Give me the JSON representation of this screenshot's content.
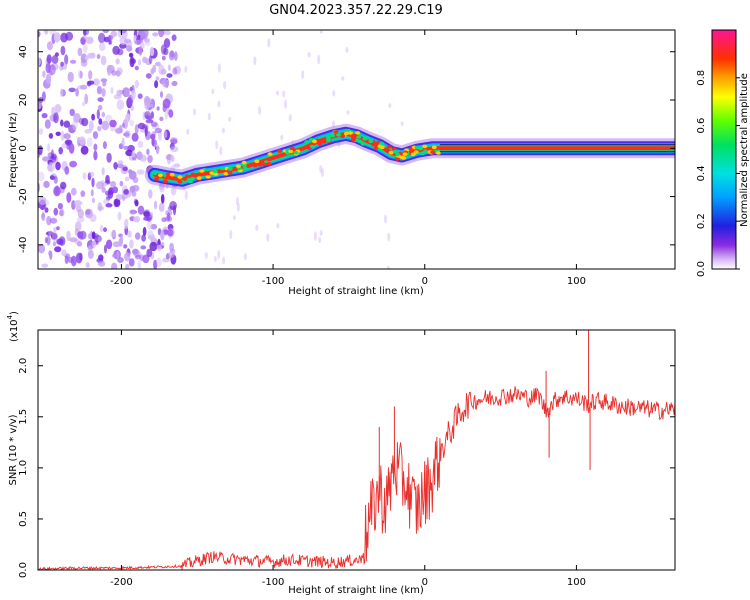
{
  "title": "GN04.2023.357.22.29.C19",
  "colors": {
    "snr_line": "#e8302c",
    "axis": "#000000"
  },
  "chart_data": [
    {
      "type": "heatmap",
      "xlabel": "Height of straight line (km)",
      "ylabel": "Frequency (Hz)",
      "xlim": [
        -255,
        165
      ],
      "ylim": [
        -50,
        49
      ],
      "x_ticks": [
        {
          "v": -200,
          "t": "-200"
        },
        {
          "v": -100,
          "t": "-100"
        },
        {
          "v": 0,
          "t": "0"
        },
        {
          "v": 100,
          "t": "100"
        }
      ],
      "y_ticks": [
        {
          "v": 40,
          "t": "40"
        },
        {
          "v": 20,
          "t": "20"
        },
        {
          "v": 0,
          "t": "0"
        },
        {
          "v": -20,
          "t": "-20"
        },
        {
          "v": -40,
          "t": "-40"
        }
      ],
      "colorbar": {
        "label": "Normalized spectral amplitude",
        "range": [
          0,
          1
        ],
        "ticks": [
          {
            "v": 0.0,
            "t": "0.0"
          },
          {
            "v": 0.2,
            "t": "0.2"
          },
          {
            "v": 0.4,
            "t": "0.4"
          },
          {
            "v": 0.6,
            "t": "0.6"
          },
          {
            "v": 0.8,
            "t": "0.8"
          }
        ]
      },
      "noise_region_x": [
        -255,
        -163
      ],
      "ridge": {
        "x": [
          -178,
          -170,
          -160,
          -150,
          -140,
          -130,
          -120,
          -110,
          -100,
          -90,
          -80,
          -70,
          -60,
          -52,
          -45,
          -38,
          -30,
          -22,
          -15,
          -10,
          -5,
          5,
          10,
          20,
          40,
          60,
          80,
          100,
          120,
          140,
          165
        ],
        "freq": [
          -11,
          -12,
          -13,
          -11,
          -10,
          -9,
          -8,
          -6,
          -4,
          -2,
          0,
          3,
          5,
          6,
          5,
          3,
          1,
          -2,
          -3,
          -2,
          -1,
          0,
          0,
          0,
          0,
          0,
          0,
          0,
          0,
          0,
          0
        ]
      }
    },
    {
      "type": "line",
      "xlabel": "Height of straight line (km)",
      "ylabel": "SNR (10 * v/v)",
      "y_scale_label": "(x10",
      "y_scale_exp": "4",
      "xlim": [
        -255,
        165
      ],
      "ylim": [
        0,
        2.35
      ],
      "x_ticks": [
        {
          "v": -200,
          "t": "-200"
        },
        {
          "v": -100,
          "t": "-100"
        },
        {
          "v": 0,
          "t": "0"
        },
        {
          "v": 100,
          "t": "100"
        }
      ],
      "y_ticks": [
        {
          "v": 0.0,
          "t": "0.0"
        },
        {
          "v": 0.5,
          "t": "0.5"
        },
        {
          "v": 1.0,
          "t": "1.0"
        },
        {
          "v": 1.5,
          "t": "1.5"
        },
        {
          "v": 2.0,
          "t": "2.0"
        }
      ],
      "series": [
        {
          "x": [
            -255,
            -230,
            -200,
            -175,
            -160,
            -150,
            -140,
            -130,
            -120,
            -110,
            -100,
            -90,
            -80,
            -70,
            -60,
            -50,
            -42,
            -38,
            -35,
            -30,
            -27,
            -24,
            -20,
            -16,
            -12,
            -8,
            -5,
            0,
            5,
            10,
            15,
            20,
            25,
            30,
            40,
            50,
            60,
            70,
            75,
            80,
            85,
            90,
            100,
            108,
            115,
            130,
            145,
            155,
            165
          ],
          "y": [
            0.01,
            0.02,
            0.02,
            0.03,
            0.04,
            0.09,
            0.13,
            0.11,
            0.1,
            0.09,
            0.08,
            0.1,
            0.09,
            0.08,
            0.07,
            0.09,
            0.1,
            0.4,
            0.55,
            0.8,
            0.65,
            0.7,
            1.05,
            0.9,
            0.85,
            0.65,
            0.6,
            0.75,
            0.9,
            1.15,
            1.3,
            1.45,
            1.58,
            1.65,
            1.68,
            1.7,
            1.72,
            1.68,
            1.72,
            1.55,
            1.65,
            1.7,
            1.68,
            1.62,
            1.66,
            1.6,
            1.58,
            1.56,
            1.58
          ]
        }
      ],
      "spikes": [
        {
          "x": -30,
          "y": 1.4
        },
        {
          "x": -20,
          "y": 1.6
        },
        {
          "x": 80,
          "y": 1.95
        },
        {
          "x": 82,
          "y": 1.1
        },
        {
          "x": 108,
          "y": 2.35
        },
        {
          "x": 109,
          "y": 0.98
        }
      ]
    }
  ]
}
